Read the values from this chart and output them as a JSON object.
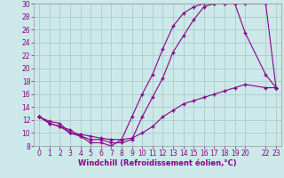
{
  "xlabel": "Windchill (Refroidissement éolien,°C)",
  "bg_color": "#cce8e8",
  "grid_color": "#aacccc",
  "line_color": "#880088",
  "series1_x": [
    0,
    1,
    2,
    3,
    4,
    5,
    6,
    7,
    8,
    9,
    10,
    11,
    12,
    13,
    14,
    15,
    16,
    17,
    18,
    19,
    20,
    22,
    23
  ],
  "series1_y": [
    12.5,
    11.5,
    11.0,
    10.5,
    9.5,
    9.0,
    9.0,
    8.5,
    8.5,
    9.0,
    12.5,
    15.5,
    18.5,
    22.5,
    25.0,
    27.5,
    29.5,
    30.0,
    30.0,
    30.0,
    30.0,
    30.0,
    17.0
  ],
  "series2_x": [
    0,
    1,
    2,
    3,
    4,
    5,
    6,
    7,
    8,
    9,
    10,
    11,
    12,
    13,
    14,
    15,
    16,
    17,
    18,
    19,
    20,
    22,
    23
  ],
  "series2_y": [
    12.5,
    11.5,
    11.0,
    10.0,
    9.5,
    8.5,
    8.5,
    8.0,
    9.0,
    12.5,
    16.0,
    19.0,
    23.0,
    26.5,
    28.5,
    29.5,
    30.0,
    30.0,
    30.0,
    30.0,
    25.5,
    19.0,
    17.0
  ],
  "series3_x": [
    0,
    1,
    2,
    3,
    4,
    5,
    6,
    7,
    8,
    9,
    10,
    11,
    12,
    13,
    14,
    15,
    16,
    17,
    18,
    19,
    20,
    22,
    23
  ],
  "series3_y": [
    12.5,
    11.8,
    11.5,
    10.0,
    9.8,
    9.5,
    9.2,
    9.0,
    9.0,
    9.2,
    10.0,
    11.0,
    12.5,
    13.5,
    14.5,
    15.0,
    15.5,
    16.0,
    16.5,
    17.0,
    17.5,
    17.0,
    17.0
  ],
  "ylim": [
    8,
    30
  ],
  "xlim": [
    -0.5,
    23.5
  ],
  "yticks": [
    8,
    10,
    12,
    14,
    16,
    18,
    20,
    22,
    24,
    26,
    28,
    30
  ],
  "xticks": [
    0,
    1,
    2,
    3,
    4,
    5,
    6,
    7,
    8,
    9,
    10,
    11,
    12,
    13,
    14,
    15,
    16,
    17,
    18,
    19,
    20,
    22,
    23
  ],
  "tick_fontsize": 5.5,
  "xlabel_fontsize": 6.0
}
